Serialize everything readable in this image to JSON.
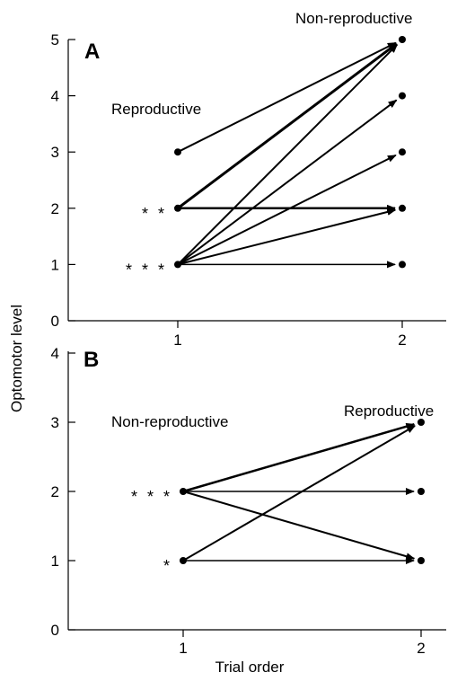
{
  "chart_data": [
    {
      "type": "line",
      "panel": "A",
      "xlabel": "",
      "ylabel": "Optomotor level",
      "x_ticks": [
        "1",
        "2"
      ],
      "ylim": [
        0,
        5
      ],
      "y_ticks": [
        "0",
        "1",
        "2",
        "3",
        "4",
        "5"
      ],
      "start_label": "Reproductive",
      "end_label": "Non-reproductive",
      "significance": [
        {
          "level": 2,
          "label": "* *"
        },
        {
          "level": 1,
          "label": "* * *"
        }
      ],
      "transitions": [
        {
          "from": 3,
          "to": 5,
          "weight": 2
        },
        {
          "from": 2,
          "to": 5,
          "weight": 3
        },
        {
          "from": 1,
          "to": 5,
          "weight": 2
        },
        {
          "from": 1,
          "to": 4,
          "weight": 2
        },
        {
          "from": 1,
          "to": 3,
          "weight": 2
        },
        {
          "from": 2,
          "to": 2,
          "weight": 2.5
        },
        {
          "from": 1,
          "to": 2,
          "weight": 2
        },
        {
          "from": 1,
          "to": 1,
          "weight": 1.5
        }
      ],
      "start_points": [
        3,
        2,
        1
      ],
      "end_points": [
        5,
        4,
        3,
        2,
        1
      ]
    },
    {
      "type": "line",
      "panel": "B",
      "xlabel": "Trial order",
      "ylabel": "Optomotor level",
      "x_ticks": [
        "1",
        "2"
      ],
      "ylim": [
        0,
        4
      ],
      "y_ticks": [
        "0",
        "1",
        "2",
        "3",
        "4"
      ],
      "start_label": "Non-reproductive",
      "end_label": "Reproductive",
      "significance": [
        {
          "level": 2,
          "label": "* * *"
        },
        {
          "level": 1,
          "label": "*"
        }
      ],
      "transitions": [
        {
          "from": 2,
          "to": 3,
          "weight": 2.5
        },
        {
          "from": 1,
          "to": 3,
          "weight": 2
        },
        {
          "from": 2,
          "to": 2,
          "weight": 1.5
        },
        {
          "from": 2,
          "to": 1,
          "weight": 2
        },
        {
          "from": 1,
          "to": 1,
          "weight": 1.5
        }
      ],
      "start_points": [
        2,
        1
      ],
      "end_points": [
        3,
        2,
        1
      ]
    }
  ]
}
